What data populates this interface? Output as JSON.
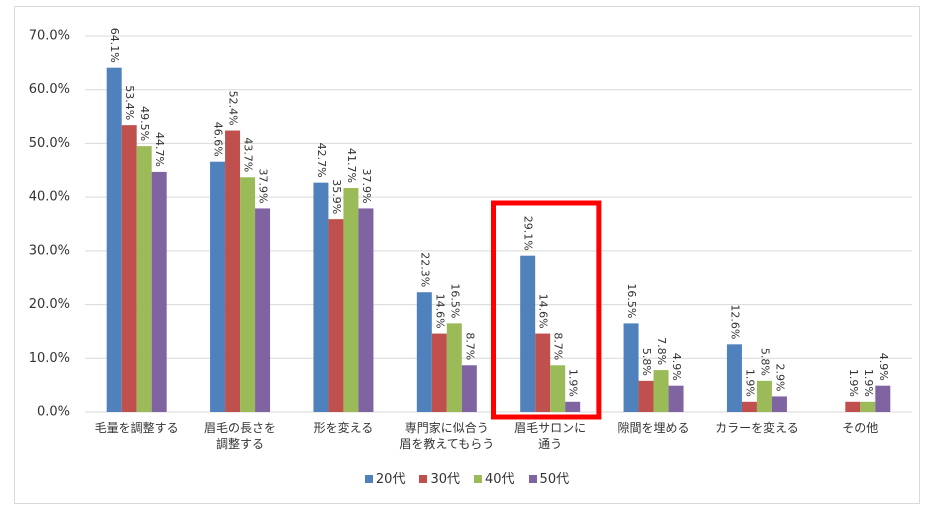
{
  "chart_data": {
    "type": "bar",
    "categories": [
      "毛量を調整する",
      "眉毛の長さを\n調整する",
      "形を変える",
      "専門家に似合う\n眉を教えてもらう",
      "眉毛サロンに\n通う",
      "隙間を埋める",
      "カラーを変える",
      "その他"
    ],
    "series": [
      {
        "name": "20代",
        "color": "#4f81bd",
        "values": [
          64.1,
          46.6,
          42.7,
          22.3,
          29.1,
          16.5,
          12.6,
          null
        ],
        "value_labels": [
          "64.1%",
          "46.6%",
          "42.7%",
          "22.3%",
          "29.1%",
          "16.5%",
          "12.6%",
          null
        ]
      },
      {
        "name": "30代",
        "color": "#c0504d",
        "values": [
          53.4,
          52.4,
          35.9,
          14.6,
          14.6,
          5.8,
          1.9,
          1.9
        ],
        "value_labels": [
          "53.4%",
          "52.4%",
          "35.9%",
          "14.6%",
          "14.6%",
          "5.8%",
          "1.9%",
          "1.9%"
        ]
      },
      {
        "name": "40代",
        "color": "#9bbb59",
        "values": [
          49.5,
          43.7,
          41.7,
          16.5,
          8.7,
          7.8,
          5.8,
          1.9
        ],
        "value_labels": [
          "49.5%",
          "43.7%",
          "41.7%",
          "16.5%",
          "8.7%",
          "7.8%",
          "5.8%",
          "1.9%"
        ]
      },
      {
        "name": "50代",
        "color": "#8064a2",
        "values": [
          44.7,
          37.9,
          37.9,
          8.7,
          1.9,
          4.9,
          2.9,
          4.9
        ],
        "value_labels": [
          "44.7%",
          "37.9%",
          "37.9%",
          "8.7%",
          "1.9%",
          "4.9%",
          "2.9%",
          "4.9%"
        ]
      }
    ],
    "ylim": [
      0,
      70
    ],
    "yticks": [
      {
        "value": 0,
        "label": "0.0%"
      },
      {
        "value": 10,
        "label": "10.0%"
      },
      {
        "value": 20,
        "label": "20.0%"
      },
      {
        "value": 30,
        "label": "30.0%"
      },
      {
        "value": 40,
        "label": "40.0%"
      },
      {
        "value": 50,
        "label": "50.0%"
      },
      {
        "value": 60,
        "label": "60.0%"
      },
      {
        "value": 70,
        "label": "70.0%"
      }
    ],
    "grid": true,
    "legend": "bottom"
  }
}
